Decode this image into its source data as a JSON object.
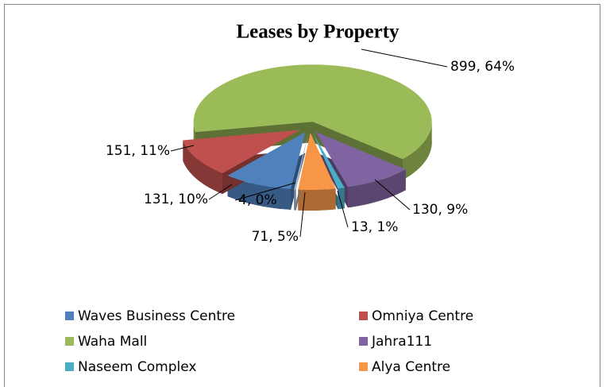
{
  "chart_data": {
    "type": "pie3d",
    "title": "Leases by Property",
    "categories": [
      "Waves Business Centre",
      "Omniya Centre",
      "Waha Mall",
      "Jahra111",
      "Naseem Complex",
      "Alya Centre",
      null
    ],
    "values": [
      131,
      151,
      899,
      130,
      13,
      71,
      4
    ],
    "value_labels": [
      "131, 10%",
      "151, 11%",
      "899, 64%",
      "130, 9%",
      "13, 1%",
      "71, 5%",
      "4, 0%"
    ],
    "colors": [
      "#4f81bd",
      "#c0504d",
      "#9bbb59",
      "#8064a2",
      "#4bacc6",
      "#f79646",
      "#a9b9d3"
    ],
    "legend": "bottom"
  }
}
